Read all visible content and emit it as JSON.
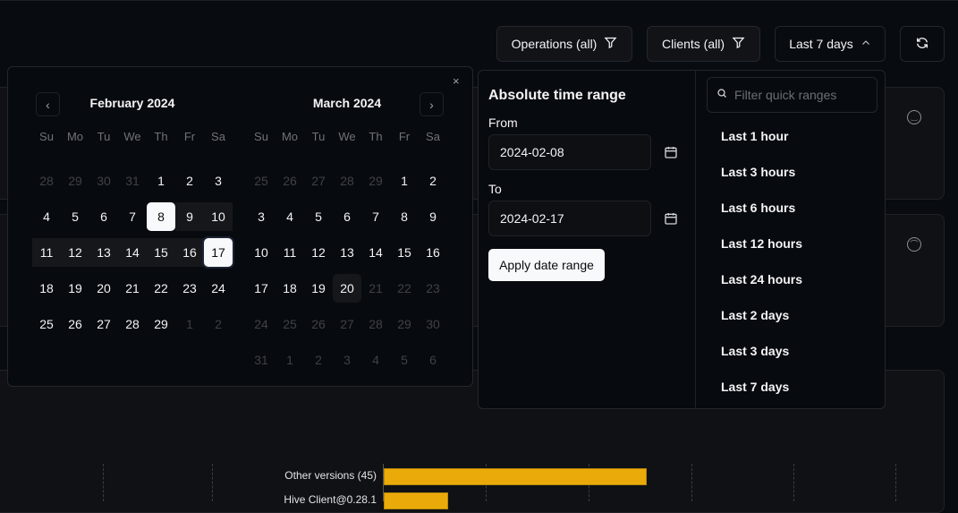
{
  "toolbar": {
    "operations": "Operations (all)",
    "clients": "Clients (all)",
    "range": "Last 7 days"
  },
  "calendar": {
    "left": {
      "title": "February 2024",
      "days": [
        [
          "28",
          1
        ],
        [
          "29",
          1
        ],
        [
          "30",
          1
        ],
        [
          "31",
          1
        ],
        [
          "1"
        ],
        [
          "2"
        ],
        [
          "3"
        ],
        [
          "4"
        ],
        [
          "5"
        ],
        [
          "6"
        ],
        [
          "7"
        ],
        [
          "8",
          "sel"
        ],
        [
          "9",
          "range"
        ],
        [
          "10",
          "range"
        ],
        [
          "11",
          "range"
        ],
        [
          "12",
          "range"
        ],
        [
          "13",
          "range"
        ],
        [
          "14",
          "range"
        ],
        [
          "15",
          "range"
        ],
        [
          "16",
          "range"
        ],
        [
          "17",
          "sel"
        ],
        [
          "18"
        ],
        [
          "19"
        ],
        [
          "20"
        ],
        [
          "21"
        ],
        [
          "22"
        ],
        [
          "23"
        ],
        [
          "24"
        ],
        [
          "25"
        ],
        [
          "26"
        ],
        [
          "27"
        ],
        [
          "28"
        ],
        [
          "29"
        ],
        [
          "1",
          1
        ],
        [
          "2",
          1
        ]
      ]
    },
    "right": {
      "title": "March 2024",
      "days": [
        [
          "25",
          1
        ],
        [
          "26",
          1
        ],
        [
          "27",
          1
        ],
        [
          "28",
          1
        ],
        [
          "29",
          1
        ],
        [
          "1"
        ],
        [
          "2"
        ],
        [
          "3"
        ],
        [
          "4"
        ],
        [
          "5"
        ],
        [
          "6"
        ],
        [
          "7"
        ],
        [
          "8"
        ],
        [
          "9"
        ],
        [
          "10"
        ],
        [
          "11"
        ],
        [
          "12"
        ],
        [
          "13"
        ],
        [
          "14"
        ],
        [
          "15"
        ],
        [
          "16"
        ],
        [
          "17"
        ],
        [
          "18"
        ],
        [
          "19"
        ],
        [
          "20",
          "today"
        ],
        [
          "21",
          1
        ],
        [
          "22",
          1
        ],
        [
          "23",
          1
        ],
        [
          "24",
          1
        ],
        [
          "25",
          1
        ],
        [
          "26",
          1
        ],
        [
          "27",
          1
        ],
        [
          "28",
          1
        ],
        [
          "29",
          1
        ],
        [
          "30",
          1
        ],
        [
          "31",
          1
        ],
        [
          "1",
          1
        ],
        [
          "2",
          1
        ],
        [
          "3",
          1
        ],
        [
          "4",
          1
        ],
        [
          "5",
          1
        ],
        [
          "6",
          1
        ]
      ]
    },
    "weekdays": [
      "Su",
      "Mo",
      "Tu",
      "We",
      "Th",
      "Fr",
      "Sa"
    ],
    "close": "×"
  },
  "absolute": {
    "title": "Absolute time range",
    "from_label": "From",
    "from": "2024-02-08",
    "to_label": "To",
    "to": "2024-02-17",
    "apply": "Apply date range"
  },
  "quick": {
    "placeholder": "Filter quick ranges",
    "items": [
      "Last 1 hour",
      "Last 3 hours",
      "Last 6 hours",
      "Last 12 hours",
      "Last 24 hours",
      "Last 2 days",
      "Last 3 days",
      "Last 7 days"
    ]
  },
  "chart_data": {
    "type": "bar",
    "orientation": "horizontal",
    "categories": [
      "Other versions (45)",
      "Hive Client@0.28.1"
    ],
    "values": [
      45,
      11
    ],
    "color": "#eaab0a"
  }
}
